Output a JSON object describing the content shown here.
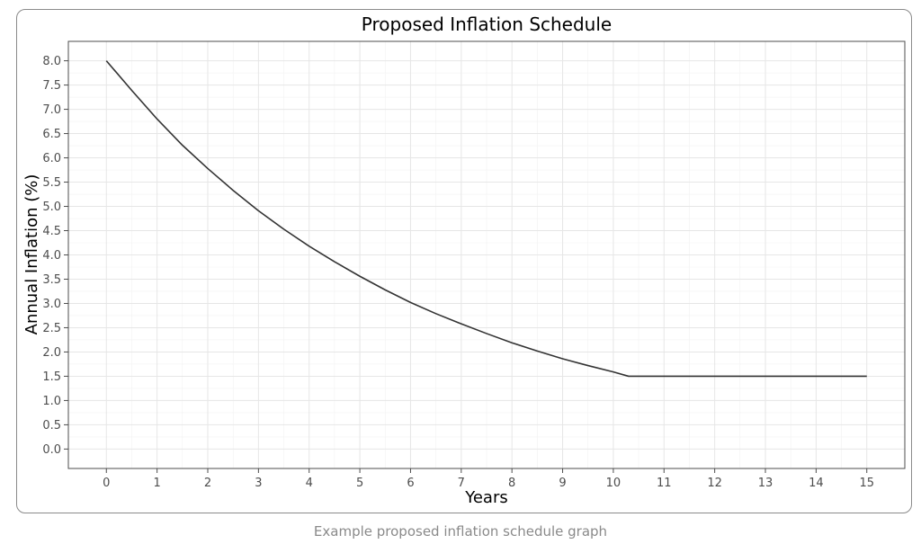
{
  "caption": "Example proposed inflation schedule graph",
  "chart_data": {
    "type": "line",
    "title": "Proposed Inflation Schedule",
    "xlabel": "Years",
    "ylabel": "Annual Inflation (%)",
    "xlim": [
      -0.75,
      15.75
    ],
    "ylim": [
      -0.4,
      8.4
    ],
    "xticks": [
      0,
      1,
      2,
      3,
      4,
      5,
      6,
      7,
      8,
      9,
      10,
      11,
      12,
      13,
      14,
      15
    ],
    "yticks": [
      "0.0",
      "0.5",
      "1.0",
      "1.5",
      "2.0",
      "2.5",
      "3.0",
      "3.5",
      "4.0",
      "4.5",
      "5.0",
      "5.5",
      "6.0",
      "6.5",
      "7.0",
      "7.5",
      "8.0"
    ],
    "grid": true,
    "line_color": "#333333",
    "series": [
      {
        "x": [
          0,
          0.5,
          1,
          1.5,
          2,
          2.5,
          3,
          3.5,
          4,
          4.5,
          5,
          5.5,
          6,
          6.5,
          7,
          7.5,
          8,
          8.5,
          9,
          9.5,
          10,
          10.3,
          11,
          12,
          13,
          14,
          15
        ],
        "y": [
          8.0,
          7.39,
          6.8,
          6.26,
          5.78,
          5.33,
          4.91,
          4.53,
          4.18,
          3.86,
          3.56,
          3.28,
          3.02,
          2.79,
          2.58,
          2.38,
          2.19,
          2.02,
          1.86,
          1.72,
          1.59,
          1.5,
          1.5,
          1.5,
          1.5,
          1.5,
          1.5
        ]
      }
    ]
  }
}
